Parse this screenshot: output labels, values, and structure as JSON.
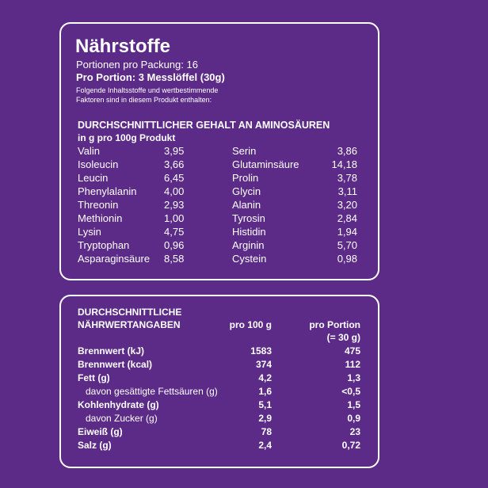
{
  "header": {
    "title": "Nährstoffe",
    "servings": "Portionen pro Packung: 16",
    "portion": "Pro Portion: 3 Messlöffel (30g)",
    "note_lines": [
      "Folgende Inhaltsstoffe und wertbestimmende",
      "Faktoren sind in diesem Produkt enthalten:"
    ]
  },
  "amino": {
    "title": "DURCHSCHNITTLICHER GEHALT AN AMINOSÄUREN",
    "subtitle": "in g pro 100g Produkt",
    "rows": [
      [
        "Valin",
        "3,95",
        "Serin",
        "3,86"
      ],
      [
        "Isoleucin",
        "3,66",
        "Glutaminsäure",
        "14,18"
      ],
      [
        "Leucin",
        "6,45",
        "Prolin",
        "3,78"
      ],
      [
        "Phenylalanin",
        "4,00",
        "Glycin",
        "3,11"
      ],
      [
        "Threonin",
        "2,93",
        "Alanin",
        "3,20"
      ],
      [
        "Methionin",
        "1,00",
        "Tyrosin",
        "2,84"
      ],
      [
        "Lysin",
        "4,75",
        "Histidin",
        "1,94"
      ],
      [
        "Tryptophan",
        "0,96",
        "Arginin",
        "5,70"
      ],
      [
        "Asparaginsäure",
        "8,58",
        "Cystein",
        "0,98"
      ]
    ]
  },
  "nutrition": {
    "title_lines": [
      "DURCHSCHNITTLICHE",
      "NÄHRWERTANGABEN"
    ],
    "col_100g": "pro 100 g",
    "col_portion": [
      "pro Portion",
      "(= 30 g)"
    ],
    "rows": [
      [
        "Brennwert (kJ)",
        "1583",
        "475"
      ],
      [
        "Brennwert (kcal)",
        "374",
        "112"
      ],
      [
        "Fett (g)",
        "4,2",
        "1,3"
      ],
      [
        "davon gesättigte Fettsäuren (g)",
        "1,6",
        "<0,5"
      ],
      [
        "Kohlenhydrate (g)",
        "5,1",
        "1,5"
      ],
      [
        "davon Zucker (g)",
        "2,9",
        "0,9"
      ],
      [
        "Eiweiß (g)",
        "78",
        "23"
      ],
      [
        "Salz (g)",
        "2,4",
        "0,72"
      ]
    ]
  }
}
